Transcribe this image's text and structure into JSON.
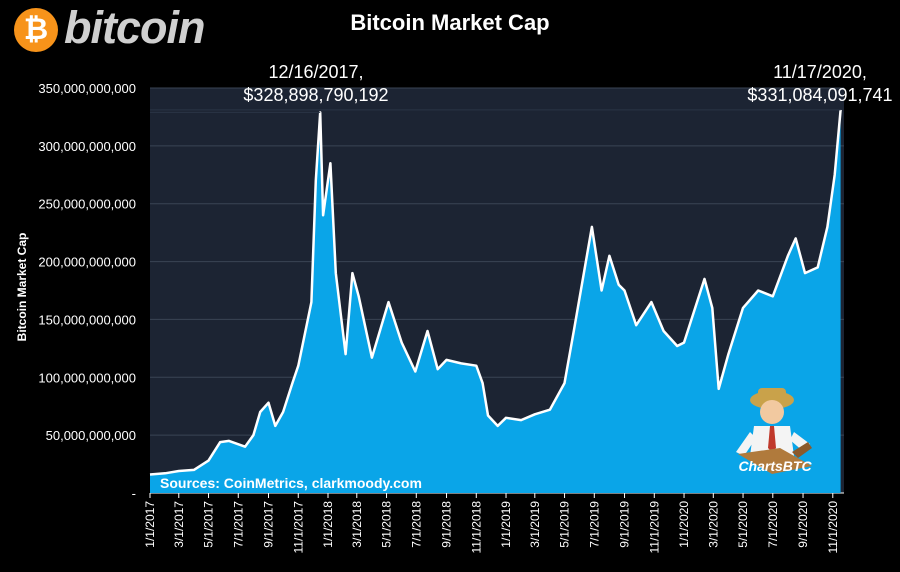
{
  "logo": {
    "symbol": "₿",
    "text": "bitcoin"
  },
  "chart_data": {
    "type": "area",
    "title": "Bitcoin Market Cap",
    "ylabel": "Bitcoin Market Cap",
    "xlabel": "",
    "ylim": [
      0,
      350000000000
    ],
    "y_ticks": [
      "-",
      "50,000,000,000",
      "100,000,000,000",
      "150,000,000,000",
      "200,000,000,000",
      "250,000,000,000",
      "300,000,000,000",
      "350,000,000,000"
    ],
    "x_ticks": [
      "1/1/2017",
      "3/1/2017",
      "5/1/2017",
      "7/1/2017",
      "9/1/2017",
      "11/1/2017",
      "1/1/2018",
      "3/1/2018",
      "5/1/2018",
      "7/1/2018",
      "9/1/2018",
      "11/1/2018",
      "1/1/2019",
      "3/1/2019",
      "5/1/2019",
      "7/1/2019",
      "9/1/2019",
      "11/1/2019",
      "1/1/2020",
      "3/1/2020",
      "5/1/2020",
      "7/1/2020",
      "9/1/2020",
      "11/1/2020"
    ],
    "series": [
      {
        "x": [
          "2017-01-01",
          "2017-02-01",
          "2017-03-01",
          "2017-04-01",
          "2017-05-01",
          "2017-05-25",
          "2017-06-12",
          "2017-07-15",
          "2017-08-01",
          "2017-08-15",
          "2017-09-01",
          "2017-09-15",
          "2017-10-01",
          "2017-10-20",
          "2017-11-01",
          "2017-11-28",
          "2017-12-07",
          "2017-12-16",
          "2017-12-22",
          "2018-01-06",
          "2018-01-17",
          "2018-02-06",
          "2018-02-20",
          "2018-03-05",
          "2018-04-01",
          "2018-05-05",
          "2018-06-01",
          "2018-06-29",
          "2018-07-24",
          "2018-08-14",
          "2018-09-01",
          "2018-10-01",
          "2018-11-01",
          "2018-11-14",
          "2018-11-25",
          "2018-12-15",
          "2019-01-01",
          "2019-02-01",
          "2019-03-01",
          "2019-04-01",
          "2019-05-01",
          "2019-05-20",
          "2019-06-26",
          "2019-07-16",
          "2019-08-01",
          "2019-08-20",
          "2019-09-01",
          "2019-09-25",
          "2019-10-26",
          "2019-11-20",
          "2019-12-18",
          "2020-01-01",
          "2020-02-12",
          "2020-02-28",
          "2020-03-12",
          "2020-04-01",
          "2020-05-01",
          "2020-06-01",
          "2020-07-01",
          "2020-08-01",
          "2020-08-17",
          "2020-09-05",
          "2020-10-01",
          "2020-10-21",
          "2020-11-05",
          "2020-11-17"
        ],
        "values": [
          16000000000,
          17000000000,
          19000000000,
          20000000000,
          28000000000,
          44000000000,
          45000000000,
          40000000000,
          50000000000,
          70000000000,
          78000000000,
          58000000000,
          70000000000,
          95000000000,
          110000000000,
          165000000000,
          270000000000,
          328898790192,
          240000000000,
          285000000000,
          190000000000,
          120000000000,
          190000000000,
          170000000000,
          117000000000,
          165000000000,
          130000000000,
          105000000000,
          140000000000,
          107000000000,
          115000000000,
          112000000000,
          110000000000,
          95000000000,
          67000000000,
          58000000000,
          65000000000,
          63000000000,
          68000000000,
          72000000000,
          95000000000,
          140000000000,
          230000000000,
          175000000000,
          205000000000,
          180000000000,
          175000000000,
          145000000000,
          165000000000,
          140000000000,
          127000000000,
          130000000000,
          185000000000,
          160000000000,
          90000000000,
          120000000000,
          160000000000,
          175000000000,
          170000000000,
          205000000000,
          220000000000,
          190000000000,
          195000000000,
          230000000000,
          275000000000,
          331084091741
        ]
      }
    ],
    "annotations": [
      {
        "line1": "12/16/2017,",
        "line2": "$328,898,790,192",
        "x": "2017-12-16",
        "y": 328898790192
      },
      {
        "line1": "11/17/2020,",
        "line2": "$331,084,091,741",
        "x": "2020-11-17",
        "y": 331084091741
      }
    ],
    "source": "Sources: CoinMetrics, clarkmoody.com",
    "grid": true,
    "colors": {
      "background": "#000000",
      "plot": "#1c2433",
      "area": "#0aa5e8",
      "line": "#ffffff",
      "grid": "#3a4454"
    }
  },
  "watermark": "ChartsBTC"
}
